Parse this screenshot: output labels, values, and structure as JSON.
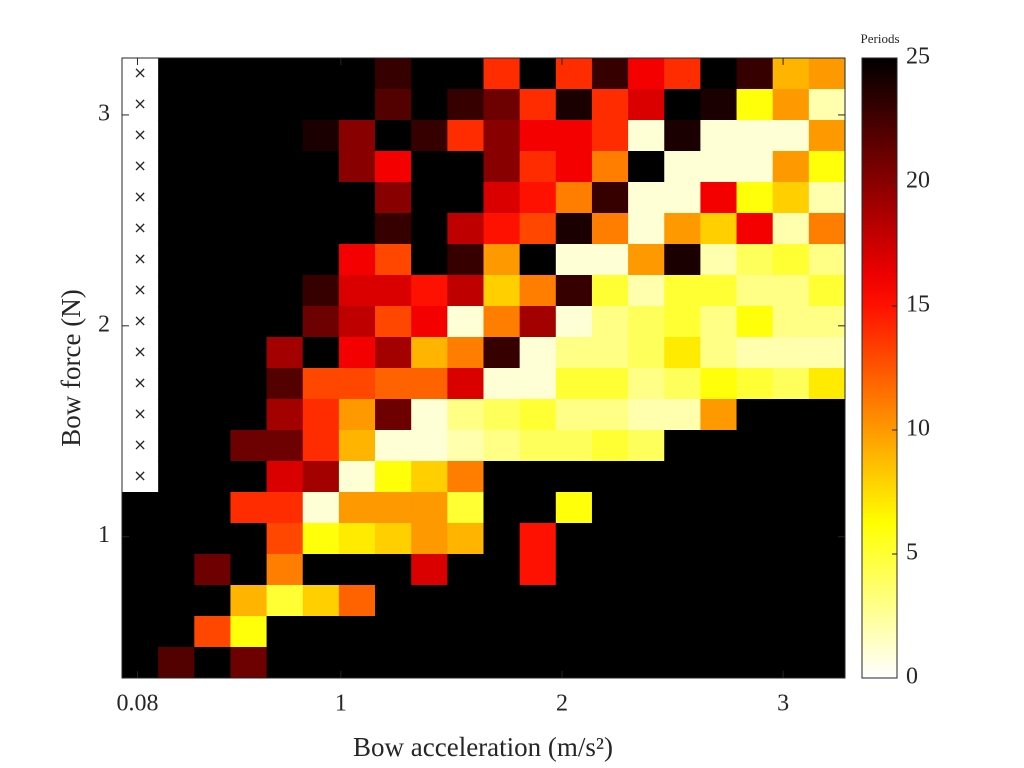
{
  "chart_data": {
    "type": "heatmap",
    "xlabel": "Bow acceleration (m/s²)",
    "ylabel": "Bow force (N)",
    "colorbar_label": "Periods",
    "null_marker": "×",
    "colormap": "hot_reversed",
    "x_edges": [
      0.01,
      0.1735,
      0.337,
      0.5005,
      0.664,
      0.8275,
      0.991,
      1.1545,
      1.318,
      1.4815,
      1.645,
      1.8085,
      1.972,
      2.1355,
      2.299,
      2.4625,
      2.626,
      2.7895,
      2.953,
      3.1165,
      3.28
    ],
    "y_edges": [
      3.27,
      3.123,
      2.976,
      2.829,
      2.682,
      2.535,
      2.388,
      2.241,
      2.094,
      1.947,
      1.8,
      1.653,
      1.506,
      1.359,
      1.212,
      1.065,
      0.918,
      0.771,
      0.624,
      0.477,
      0.33
    ],
    "z": [
      [
        null,
        25,
        25,
        25,
        25,
        25,
        25,
        23,
        25,
        25,
        14,
        25,
        14,
        23,
        16,
        14,
        25,
        23,
        9,
        10
      ],
      [
        null,
        25,
        25,
        25,
        25,
        25,
        25,
        22,
        25,
        23,
        21,
        14,
        24,
        14,
        17,
        25,
        24,
        6,
        10,
        2
      ],
      [
        null,
        25,
        25,
        25,
        25,
        24,
        20,
        25,
        23,
        14,
        20,
        16,
        16,
        14,
        1,
        24,
        1,
        1,
        1,
        10
      ],
      [
        null,
        25,
        25,
        25,
        25,
        25,
        20,
        16,
        25,
        25,
        20,
        14,
        16,
        11,
        25,
        1,
        1,
        1,
        10,
        6
      ],
      [
        null,
        25,
        25,
        25,
        25,
        25,
        25,
        20,
        25,
        25,
        17,
        15,
        11,
        23,
        1,
        1,
        16,
        6,
        8,
        2
      ],
      [
        null,
        25,
        25,
        25,
        25,
        25,
        25,
        23,
        25,
        18,
        15,
        13,
        24,
        11,
        1,
        10,
        8,
        16,
        2,
        11
      ],
      [
        null,
        25,
        25,
        25,
        25,
        25,
        16,
        13,
        25,
        23,
        10,
        25,
        1,
        1,
        10,
        24,
        2,
        4,
        5,
        3
      ],
      [
        null,
        25,
        25,
        25,
        25,
        23,
        17,
        17,
        15,
        18,
        8,
        11,
        23,
        5,
        2,
        5,
        5,
        3,
        3,
        5
      ],
      [
        null,
        25,
        25,
        25,
        25,
        21,
        18,
        13,
        16,
        1,
        11,
        19,
        1,
        3,
        4,
        5,
        3,
        6,
        3,
        3
      ],
      [
        null,
        25,
        25,
        25,
        19,
        25,
        16,
        19,
        9,
        11,
        23,
        1,
        3,
        3,
        4,
        7,
        3,
        2,
        2,
        2
      ],
      [
        null,
        25,
        25,
        25,
        22,
        13,
        13,
        12,
        12,
        17,
        1,
        1,
        5,
        5,
        3,
        4,
        6,
        5,
        4,
        7
      ],
      [
        null,
        25,
        25,
        25,
        19,
        14,
        10,
        21,
        1,
        3,
        4,
        5,
        3,
        3,
        2,
        2,
        10,
        25,
        25,
        25
      ],
      [
        null,
        25,
        25,
        21,
        21,
        14,
        9,
        1,
        1,
        2,
        3,
        4,
        4,
        5,
        4,
        25,
        25,
        25,
        25,
        25
      ],
      [
        null,
        25,
        25,
        25,
        17,
        19,
        1,
        6,
        8,
        11,
        25,
        25,
        25,
        25,
        25,
        25,
        25,
        25,
        25,
        25
      ],
      [
        25,
        25,
        25,
        14,
        14,
        1,
        10,
        10,
        10,
        5,
        25,
        25,
        6,
        25,
        25,
        25,
        25,
        25,
        25,
        25
      ],
      [
        25,
        25,
        25,
        25,
        13,
        6,
        7,
        8,
        10,
        9,
        25,
        15,
        25,
        25,
        25,
        25,
        25,
        25,
        25,
        25
      ],
      [
        25,
        25,
        21,
        25,
        11,
        25,
        25,
        25,
        17,
        25,
        25,
        15,
        25,
        25,
        25,
        25,
        25,
        25,
        25,
        25
      ],
      [
        25,
        25,
        25,
        9,
        5,
        8,
        12,
        25,
        25,
        25,
        25,
        25,
        25,
        25,
        25,
        25,
        25,
        25,
        25,
        25
      ],
      [
        25,
        25,
        13,
        6,
        25,
        25,
        25,
        25,
        25,
        25,
        25,
        25,
        25,
        25,
        25,
        25,
        25,
        25,
        25,
        25
      ],
      [
        25,
        22,
        25,
        21,
        25,
        25,
        25,
        25,
        25,
        25,
        25,
        25,
        25,
        25,
        25,
        25,
        25,
        25,
        25,
        25
      ]
    ],
    "xlim": [
      0.01,
      3.28
    ],
    "ylim": [
      0.33,
      3.27
    ],
    "xticks": [
      0.08,
      1,
      2,
      3
    ],
    "yticks": [
      1,
      2,
      3
    ],
    "clim": [
      0,
      25
    ],
    "cticks": [
      0,
      5,
      10,
      15,
      20,
      25
    ]
  }
}
